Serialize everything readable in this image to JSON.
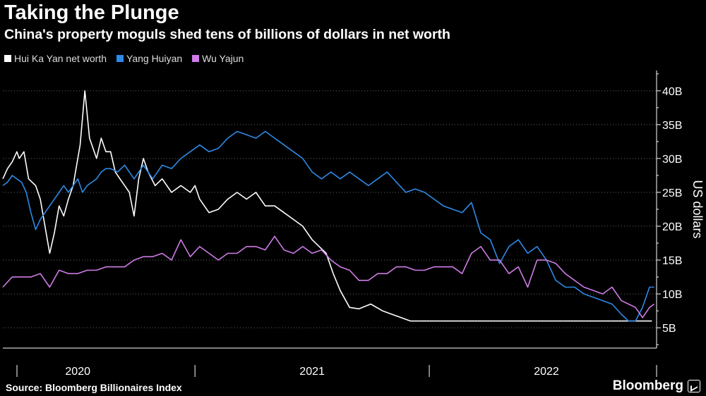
{
  "header": {
    "title": "Taking the Plunge",
    "subtitle": "China's property moguls shed tens of billions of dollars in net worth"
  },
  "footer": {
    "source": "Source: Bloomberg Billionaires Index",
    "brand": "Bloomberg"
  },
  "chart_data": {
    "type": "line",
    "title": "Taking the Plunge",
    "xlabel": "",
    "ylabel": "US dollars",
    "ylim": [
      2,
      43
    ],
    "xlim": [
      2019.68,
      2022.47
    ],
    "yticks": [
      5,
      10,
      15,
      20,
      25,
      30,
      35,
      40
    ],
    "ytick_labels": [
      "5B",
      "10B",
      "15B",
      "20B",
      "25B",
      "30B",
      "35B",
      "40B"
    ],
    "xtick_labels": [
      {
        "label": "2020",
        "x": 2020.0
      },
      {
        "label": "2021",
        "x": 2021.0
      },
      {
        "label": "2022",
        "x": 2022.0
      }
    ],
    "x_year_boundaries": [
      2019.5,
      2020.5,
      2021.5,
      2022.5
    ],
    "grid": "horizontal dotted",
    "legend_position": "top-left",
    "series": [
      {
        "name": "Hui Ka Yan net worth",
        "color": "#ffffff",
        "x": [
          2019.68,
          2019.7,
          2019.72,
          2019.74,
          2019.75,
          2019.77,
          2019.79,
          2019.82,
          2019.84,
          2019.86,
          2019.88,
          2019.9,
          2019.92,
          2019.94,
          2019.96,
          2019.98,
          2019.99,
          2020.0,
          2020.01,
          2020.03,
          2020.05,
          2020.08,
          2020.1,
          2020.12,
          2020.14,
          2020.16,
          2020.18,
          2020.2,
          2020.22,
          2020.24,
          2020.26,
          2020.28,
          2020.3,
          2020.33,
          2020.36,
          2020.4,
          2020.44,
          2020.48,
          2020.5,
          2020.52,
          2020.54,
          2020.56,
          2020.6,
          2020.64,
          2020.68,
          2020.72,
          2020.76,
          2020.8,
          2020.84,
          2020.88,
          2020.92,
          2020.96,
          2021.0,
          2021.03,
          2021.06,
          2021.09,
          2021.12,
          2021.16,
          2021.2,
          2021.25,
          2021.3,
          2021.34,
          2021.38,
          2021.42,
          2021.5,
          2021.6,
          2021.7,
          2021.8,
          2021.9,
          2022.0,
          2022.1,
          2022.2,
          2022.3,
          2022.4,
          2022.45
        ],
        "values": [
          27,
          28.5,
          29.5,
          31,
          30,
          31,
          27,
          26,
          24,
          20,
          16,
          19,
          23,
          21.5,
          24,
          26,
          28,
          30,
          32,
          40,
          33,
          30,
          33,
          31,
          31,
          28,
          27,
          26,
          25,
          21.5,
          27,
          30,
          28,
          26,
          27,
          25,
          26,
          25,
          26,
          24,
          23,
          22,
          22.5,
          24,
          25,
          24,
          25,
          23,
          23,
          22,
          21,
          20,
          18,
          17,
          16,
          13,
          10.5,
          8,
          7.8,
          8.5,
          7.5,
          7,
          6.5,
          6,
          6,
          6,
          6,
          6,
          6,
          6,
          6,
          6,
          6,
          6,
          6
        ]
      },
      {
        "name": "Yang Huiyan",
        "color": "#2e8ae6",
        "x": [
          2019.68,
          2019.7,
          2019.72,
          2019.74,
          2019.76,
          2019.78,
          2019.8,
          2019.82,
          2019.84,
          2019.86,
          2019.88,
          2019.9,
          2019.92,
          2019.94,
          2019.96,
          2019.98,
          2020.0,
          2020.02,
          2020.04,
          2020.06,
          2020.08,
          2020.1,
          2020.12,
          2020.14,
          2020.17,
          2020.2,
          2020.24,
          2020.28,
          2020.32,
          2020.36,
          2020.4,
          2020.44,
          2020.48,
          2020.52,
          2020.56,
          2020.6,
          2020.64,
          2020.68,
          2020.72,
          2020.76,
          2020.8,
          2020.84,
          2020.88,
          2020.92,
          2020.96,
          2021.0,
          2021.04,
          2021.08,
          2021.12,
          2021.16,
          2021.2,
          2021.24,
          2021.28,
          2021.32,
          2021.36,
          2021.4,
          2021.44,
          2021.48,
          2021.52,
          2021.56,
          2021.6,
          2021.64,
          2021.68,
          2021.72,
          2021.76,
          2021.8,
          2021.84,
          2021.88,
          2021.92,
          2021.96,
          2022.0,
          2022.04,
          2022.08,
          2022.12,
          2022.16,
          2022.2,
          2022.24,
          2022.28,
          2022.32,
          2022.35,
          2022.38,
          2022.41,
          2022.44,
          2022.46
        ],
        "values": [
          26,
          26.5,
          27.5,
          27,
          26.5,
          25,
          22,
          19.5,
          21,
          22,
          23,
          24,
          25,
          26,
          25,
          26,
          27,
          25,
          26,
          26.5,
          27,
          28,
          28.5,
          28.5,
          28,
          29,
          27,
          29,
          27,
          29,
          28.5,
          30,
          31,
          32,
          31,
          31.5,
          33,
          34,
          33.5,
          33,
          34,
          33,
          32,
          31,
          30,
          28,
          27,
          28,
          27,
          28,
          27,
          26,
          27,
          28,
          26.5,
          25,
          25.5,
          25,
          24,
          23,
          22.5,
          22,
          23.5,
          19,
          18,
          14.5,
          17,
          18,
          16,
          17,
          15,
          12,
          11,
          11,
          10,
          9.5,
          9,
          8.5,
          7,
          6,
          6,
          8,
          11,
          11
        ]
      },
      {
        "name": "Wu Yajun",
        "color": "#d07be8",
        "x": [
          2019.68,
          2019.72,
          2019.76,
          2019.8,
          2019.84,
          2019.88,
          2019.92,
          2019.96,
          2020.0,
          2020.04,
          2020.08,
          2020.12,
          2020.16,
          2020.2,
          2020.24,
          2020.28,
          2020.32,
          2020.36,
          2020.4,
          2020.44,
          2020.48,
          2020.52,
          2020.56,
          2020.6,
          2020.64,
          2020.68,
          2020.72,
          2020.76,
          2020.8,
          2020.84,
          2020.88,
          2020.92,
          2020.96,
          2021.0,
          2021.04,
          2021.08,
          2021.12,
          2021.16,
          2021.2,
          2021.24,
          2021.28,
          2021.32,
          2021.36,
          2021.4,
          2021.44,
          2021.48,
          2021.52,
          2021.56,
          2021.6,
          2021.64,
          2021.68,
          2021.72,
          2021.76,
          2021.8,
          2021.84,
          2021.88,
          2021.92,
          2021.96,
          2022.0,
          2022.04,
          2022.08,
          2022.12,
          2022.16,
          2022.2,
          2022.24,
          2022.28,
          2022.32,
          2022.35,
          2022.38,
          2022.41,
          2022.44,
          2022.46
        ],
        "values": [
          11,
          12.5,
          12.5,
          12.5,
          13,
          11,
          13.5,
          13,
          13,
          13.5,
          13.5,
          14,
          14,
          14,
          15,
          15.5,
          15.5,
          16,
          15,
          18,
          15.5,
          17,
          16,
          15,
          16,
          16,
          17,
          17,
          16.5,
          18.5,
          16.5,
          16,
          17,
          16,
          16.5,
          15,
          14,
          13.5,
          12,
          12,
          13,
          13,
          14,
          14,
          13.5,
          13.5,
          14,
          14,
          14,
          13,
          16,
          17,
          15,
          15,
          13,
          14,
          11,
          15,
          15,
          14.5,
          13,
          12,
          11,
          10.5,
          10,
          11,
          9,
          8.5,
          8,
          6.5,
          8,
          8.5
        ]
      }
    ]
  }
}
